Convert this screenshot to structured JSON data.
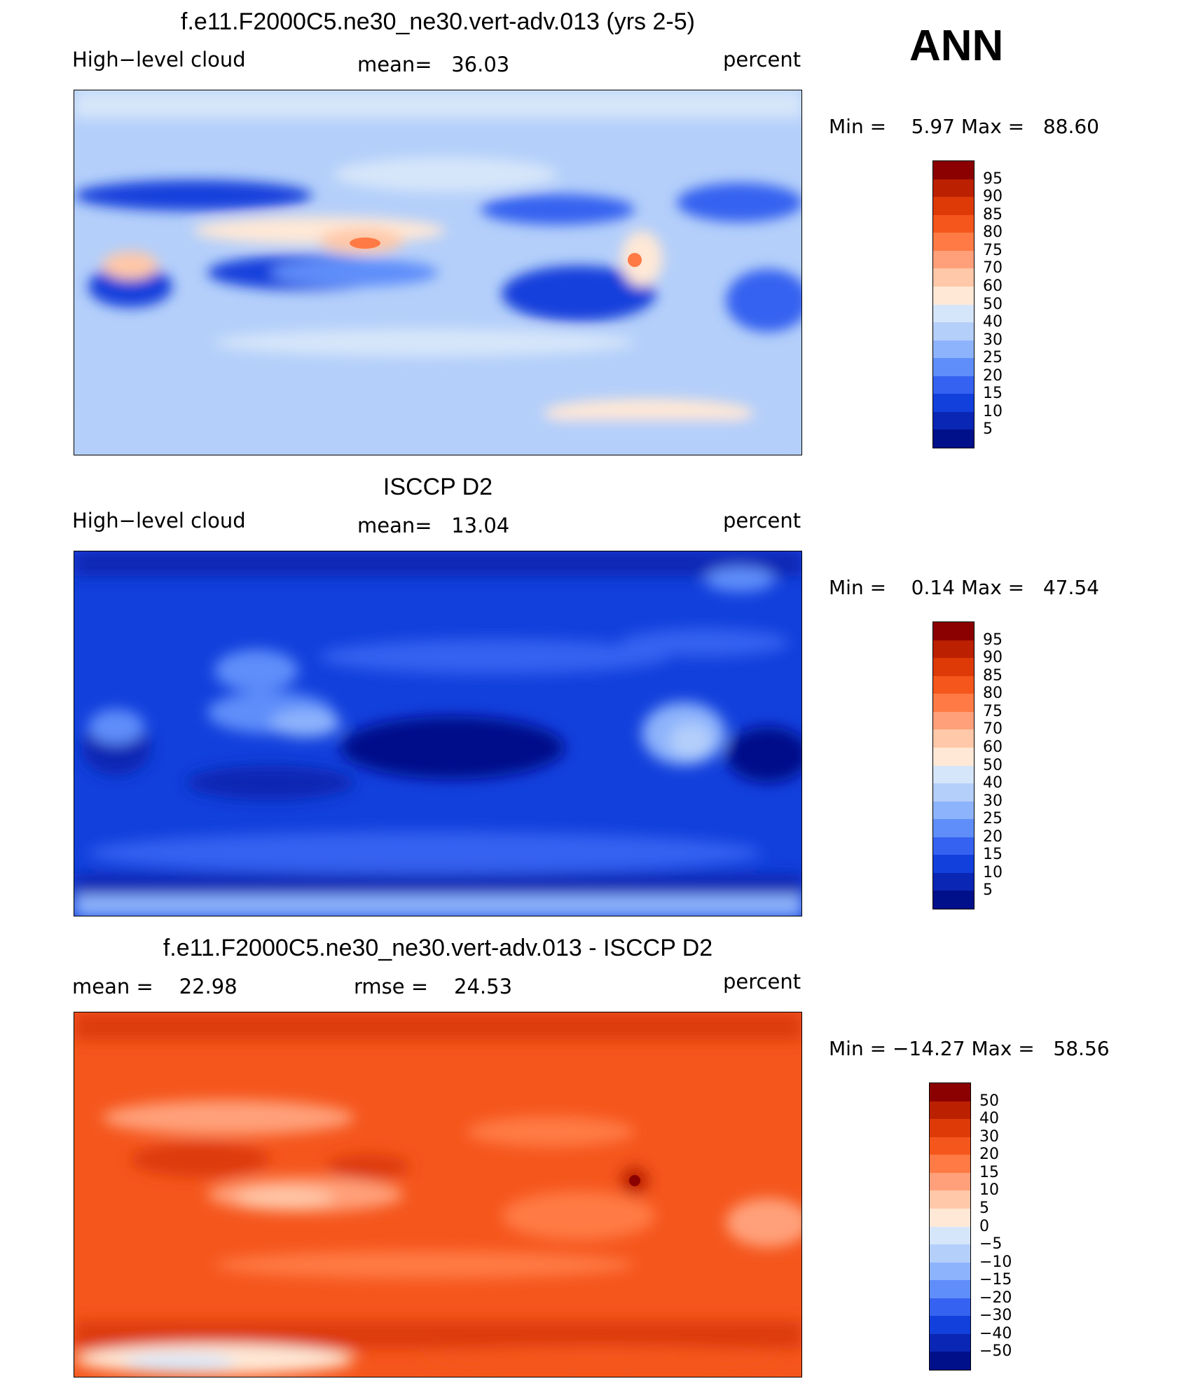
{
  "season": "ANN",
  "panels": [
    {
      "title": "f.e11.F2000C5.ne30_ne30.vert-adv.013 (yrs 2-5)",
      "left_label": "High−level cloud",
      "center_label": "mean=   36.03",
      "right_label": "percent",
      "minmax": "Min =    5.97 Max =   88.60",
      "colorbar_ticks": [
        "95",
        "90",
        "85",
        "80",
        "75",
        "70",
        "60",
        "50",
        "40",
        "30",
        "25",
        "20",
        "15",
        "10",
        "5"
      ],
      "colors": [
        "#8b0000",
        "#bb2000",
        "#dd3a08",
        "#f5561c",
        "#ff7a45",
        "#ffa07a",
        "#ffc8a8",
        "#ffe8d6",
        "#d6e6fa",
        "#b4cffa",
        "#8db3fc",
        "#5f8efa",
        "#3562f0",
        "#1240dc",
        "#0a26b4",
        "#00108a"
      ]
    },
    {
      "title": "ISCCP D2",
      "left_label": "High−level cloud",
      "center_label": "mean=   13.04",
      "right_label": "percent",
      "minmax": "Min =    0.14 Max =   47.54",
      "colorbar_ticks": [
        "95",
        "90",
        "85",
        "80",
        "75",
        "70",
        "60",
        "50",
        "40",
        "30",
        "25",
        "20",
        "15",
        "10",
        "5"
      ],
      "colors": [
        "#8b0000",
        "#bb2000",
        "#dd3a08",
        "#f5561c",
        "#ff7a45",
        "#ffa07a",
        "#ffc8a8",
        "#ffe8d6",
        "#d6e6fa",
        "#b4cffa",
        "#8db3fc",
        "#5f8efa",
        "#3562f0",
        "#1240dc",
        "#0a26b4",
        "#00108a"
      ]
    },
    {
      "title": "f.e11.F2000C5.ne30_ne30.vert-adv.013 - ISCCP D2",
      "left_label": "mean =    22.98",
      "center_label": "rmse =    24.53",
      "right_label": "percent",
      "minmax": "Min = −14.27 Max =   58.56",
      "colorbar_ticks": [
        "50",
        "40",
        "30",
        "20",
        "15",
        "10",
        "5",
        "0",
        "−5",
        "−10",
        "−15",
        "−20",
        "−30",
        "−40",
        "−50"
      ],
      "colors": [
        "#8b0000",
        "#bb2000",
        "#dd3a08",
        "#f5561c",
        "#ff7a45",
        "#ffa07a",
        "#ffc8a8",
        "#ffe8d6",
        "#d6e6fa",
        "#b4cffa",
        "#8db3fc",
        "#5f8efa",
        "#3562f0",
        "#1240dc",
        "#0a26b4",
        "#00108a"
      ]
    }
  ]
}
